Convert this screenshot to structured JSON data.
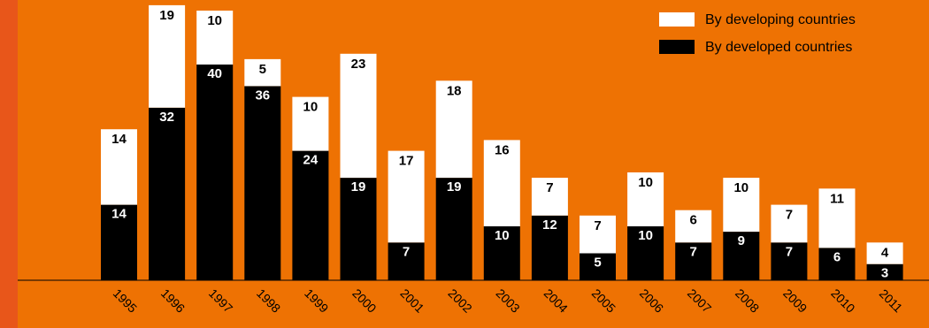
{
  "colors": {
    "background": "#ee7203",
    "left_strip": "#e8561a",
    "developing": "#ffffff",
    "developed": "#000000"
  },
  "chart_data": {
    "type": "bar",
    "stacked": true,
    "categories": [
      "1995",
      "1996",
      "1997",
      "1998",
      "1999",
      "2000",
      "2001",
      "2002",
      "2003",
      "2004",
      "2005",
      "2006",
      "2007",
      "2008",
      "2009",
      "2010",
      "2011"
    ],
    "series": [
      {
        "name": "By developed countries",
        "color": "#000000",
        "values": [
          14,
          32,
          40,
          36,
          24,
          19,
          7,
          19,
          10,
          12,
          5,
          10,
          7,
          9,
          7,
          6,
          3
        ]
      },
      {
        "name": "By developing countries",
        "color": "#ffffff",
        "values": [
          14,
          19,
          10,
          5,
          10,
          23,
          17,
          18,
          16,
          7,
          7,
          10,
          6,
          10,
          7,
          11,
          4
        ]
      }
    ],
    "legend_position": "top-right",
    "ylim": [
      0,
      60
    ],
    "grid": false
  }
}
